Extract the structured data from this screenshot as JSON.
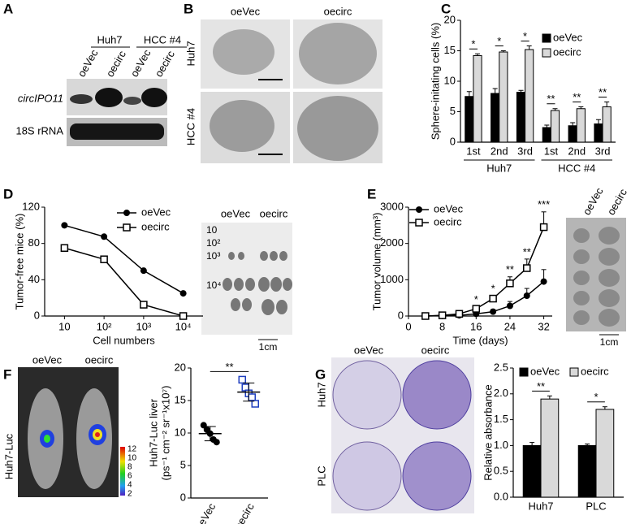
{
  "labels": [
    "A",
    "B",
    "C",
    "D",
    "E",
    "F",
    "G"
  ],
  "blot": {
    "groups": [
      "Huh7",
      "HCC #4"
    ],
    "columns": [
      "oeVec",
      "oecirc",
      "oeVec",
      "oecirc"
    ],
    "rows": [
      "circIPO11",
      "18S rRNA"
    ]
  },
  "spheres": {
    "columns": [
      "oeVec",
      "oecirc"
    ],
    "rows": [
      "Huh7",
      "HCC #4"
    ]
  },
  "xenograft_image": {
    "columns": [
      "oeVec",
      "oecirc"
    ],
    "rows": [
      "10",
      "10²",
      "10³",
      "10⁴"
    ],
    "scale": "1cm"
  },
  "tumor_image": {
    "columns": [
      "oeVec",
      "oecirc"
    ],
    "scale": "1cm"
  },
  "luc_image": {
    "columns": [
      "oeVec",
      "oecirc"
    ],
    "row": "Huh7-Luc",
    "colorbar": [
      "12",
      "10",
      "8",
      "6",
      "4",
      "2"
    ]
  },
  "colony_image": {
    "columns": [
      "oeVec",
      "oecirc"
    ],
    "rows": [
      "Huh7",
      "PLC"
    ]
  },
  "chart_data": [
    {
      "type": "bar",
      "ylabel": [
        "Sphere-initating cells (%)"
      ],
      "categories": [
        "1st",
        "2nd",
        "3rd",
        "1st",
        "2nd",
        "3rd"
      ],
      "group_labels": [
        "Huh7",
        "HCC #4"
      ],
      "series": [
        {
          "name": "oeVec",
          "color": "#000000",
          "values": [
            7.5,
            8,
            8.2,
            2.4,
            2.7,
            3
          ],
          "errors": [
            0.8,
            0.8,
            0.3,
            0.4,
            0.5,
            0.7
          ]
        },
        {
          "name": "oecirc",
          "color": "#d9d9d9",
          "values": [
            14.2,
            14.8,
            15.2,
            5.2,
            5.5,
            5.8
          ],
          "errors": [
            0.3,
            0.2,
            0.6,
            0.3,
            0.3,
            0.8
          ]
        }
      ],
      "annotations": [
        "*",
        "*",
        "*",
        "**",
        "**",
        "**"
      ],
      "ylim": [
        0,
        20
      ],
      "yticks": [
        0,
        5,
        10,
        15,
        20
      ]
    },
    {
      "type": "line",
      "ylabel": [
        "Tumor-free mice (%)"
      ],
      "xlabel": "Cell numbers",
      "categories": [
        "10",
        "10²",
        "10³",
        "10⁴"
      ],
      "series": [
        {
          "name": "oeVec",
          "color": "#000000",
          "marker": "circle",
          "values": [
            100,
            87.5,
            50,
            25
          ]
        },
        {
          "name": "oecirc",
          "color": "#000000",
          "marker": "square",
          "values": [
            75,
            62.5,
            12.5,
            0
          ]
        }
      ],
      "ylim": [
        0,
        120
      ],
      "yticks": [
        0,
        40,
        80,
        120
      ]
    },
    {
      "type": "line",
      "ylabel": [
        "Tumor volume (mm³)"
      ],
      "xlabel": "Time (days)",
      "x": [
        4,
        8,
        12,
        16,
        20,
        24,
        28,
        32
      ],
      "series": [
        {
          "name": "oeVec",
          "color": "#000000",
          "marker": "circle",
          "values": [
            0,
            10,
            20,
            60,
            120,
            280,
            560,
            950
          ],
          "errors": [
            0,
            0,
            10,
            30,
            60,
            120,
            200,
            330
          ]
        },
        {
          "name": "oecirc",
          "color": "#000000",
          "marker": "square",
          "values": [
            0,
            20,
            60,
            200,
            480,
            900,
            1320,
            2450
          ],
          "errors": [
            0,
            0,
            20,
            60,
            80,
            180,
            250,
            420
          ]
        }
      ],
      "annotations": [
        null,
        null,
        null,
        "*",
        "*",
        "**",
        "**",
        "***"
      ],
      "xlim": [
        0,
        34
      ],
      "xticks": [
        0,
        8,
        16,
        24,
        32
      ],
      "ylim": [
        0,
        3000
      ],
      "yticks": [
        0,
        1000,
        2000,
        3000
      ]
    },
    {
      "type": "dot",
      "ylabel": [
        "Huh7-Luc liver",
        "(ps⁻¹ cm⁻² sr⁻¹x10⁷)"
      ],
      "categories": [
        "oeVec",
        "oecirc"
      ],
      "values": [
        [
          11.2,
          10.5,
          9.9,
          9.0,
          8.6
        ],
        [
          18.2,
          17.0,
          16.1,
          15.5,
          14.5
        ]
      ],
      "colors": [
        "#000000",
        "#1f3fbf"
      ],
      "markers": [
        "circle",
        "square"
      ],
      "means": [
        9.9,
        16.3
      ],
      "sd": [
        1.1,
        1.4
      ],
      "annotation": "**",
      "ylim": [
        0,
        20
      ],
      "yticks": [
        0,
        5,
        10,
        15,
        20
      ]
    },
    {
      "type": "bar",
      "ylabel": [
        "Relative absorbance"
      ],
      "categories": [
        "Huh7",
        "PLC"
      ],
      "series": [
        {
          "name": "oeVec",
          "color": "#000000",
          "values": [
            1.0,
            1.0
          ],
          "errors": [
            0.06,
            0.03
          ]
        },
        {
          "name": "oecirc",
          "color": "#d9d9d9",
          "values": [
            1.9,
            1.7
          ],
          "errors": [
            0.06,
            0.05
          ]
        }
      ],
      "annotations": [
        "**",
        "*"
      ],
      "ylim": [
        0,
        2.5
      ],
      "yticks": [
        {
          "value": 0,
          "label": "0.0"
        },
        0.5,
        {
          "value": 1,
          "label": "1.0"
        },
        1.5,
        {
          "value": 2,
          "label": "2.0"
        },
        2.5
      ]
    }
  ]
}
